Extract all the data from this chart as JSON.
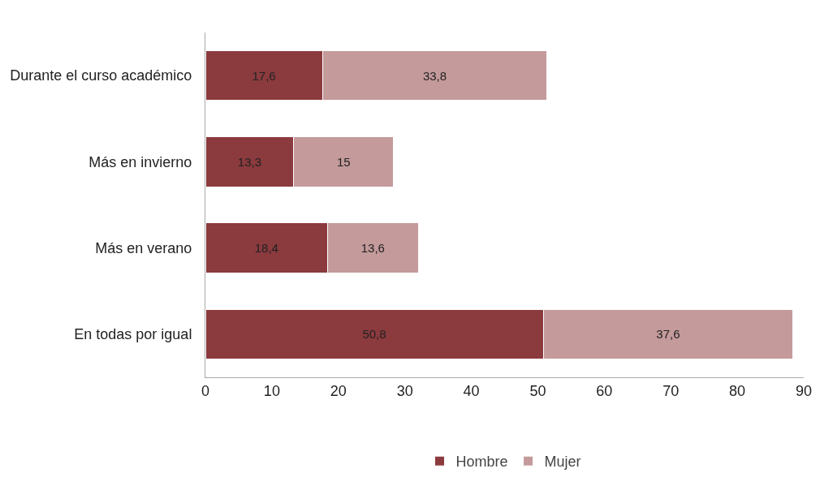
{
  "chart_data": {
    "type": "bar",
    "orientation": "horizontal",
    "stacked": true,
    "categories": [
      "Durante el curso académico",
      "Más en invierno",
      "Más en verano",
      "En todas por igual"
    ],
    "series": [
      {
        "name": "Hombre",
        "color": "#8b3a3e",
        "values": [
          17.6,
          13.3,
          18.4,
          50.8
        ],
        "value_labels": [
          "17,6",
          "13,3",
          "18,4",
          "50,8"
        ]
      },
      {
        "name": "Mujer",
        "color": "#c49a9b",
        "values": [
          33.8,
          15,
          13.6,
          37.6
        ],
        "value_labels": [
          "33,8",
          "15",
          "13,6",
          "37,6"
        ]
      }
    ],
    "xlim": [
      0,
      90
    ],
    "xticks": [
      0,
      10,
      20,
      30,
      40,
      50,
      60,
      70,
      80,
      90
    ],
    "legend": "bottom",
    "grid": false
  }
}
